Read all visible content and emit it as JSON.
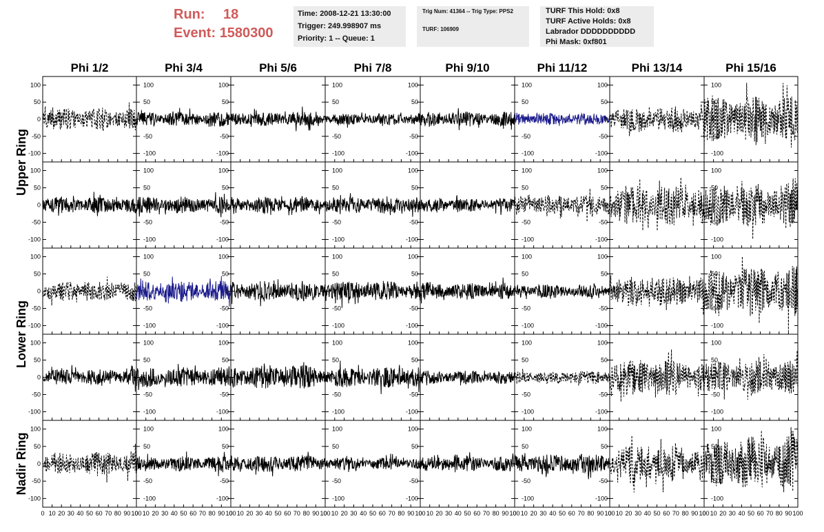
{
  "header": {
    "run_label": "Run:",
    "run_value": "18",
    "event_label": "Event:",
    "event_value": "1580300",
    "time": "Time: 2008-12-21 13:30:00",
    "trigger": "Trigger: 249.998907 ms",
    "priority": "Priority: 1 -- Queue: 1",
    "trig_num": "Trig Num: 41364 -- Trig Type: PPS2",
    "turf": "TURF: 106909",
    "turf_this_hold": "TURF This Hold: 0x8",
    "turf_active_holds": "TURF Active Holds: 0x8",
    "labrador": "Labrador DDDDDDDDDD",
    "phi_mask": "Phi Mask: 0xf801"
  },
  "colors": {
    "header_red": "#d05a5a",
    "trace_black": "#000000",
    "trace_blue": "#1a1a8c",
    "info_bg": "#ececec"
  },
  "chart_data": {
    "type": "line",
    "columns": [
      "Phi 1/2",
      "Phi 3/4",
      "Phi 5/6",
      "Phi 7/8",
      "Phi 9/10",
      "Phi 11/12",
      "Phi 13/14",
      "Phi 15/16"
    ],
    "rows": [
      "Upper Ring",
      "Lower Ring",
      "Nadir Ring"
    ],
    "xlim": [
      0,
      100
    ],
    "ylim": [
      -125,
      125
    ],
    "y_ticks": [
      -100,
      -50,
      0,
      50,
      100
    ],
    "x_ticks": [
      0,
      10,
      20,
      30,
      40,
      50,
      60,
      70,
      80,
      90,
      100
    ],
    "panels": [
      [
        {
          "amp": 35,
          "style": "dashed",
          "color": "black"
        },
        {
          "amp": 22,
          "style": "solid",
          "color": "black"
        },
        {
          "amp": 22,
          "style": "solid",
          "color": "black"
        },
        {
          "amp": 18,
          "style": "solid",
          "color": "black"
        },
        {
          "amp": 22,
          "style": "solid",
          "color": "black"
        },
        {
          "amp": 18,
          "style": "solid",
          "color": "blue"
        },
        {
          "amp": 40,
          "style": "dashed",
          "color": "black"
        },
        {
          "amp": 70,
          "style": "dashed",
          "color": "black"
        }
      ],
      [
        {
          "amp": 25,
          "style": "solid",
          "color": "black"
        },
        {
          "amp": 25,
          "style": "solid",
          "color": "black"
        },
        {
          "amp": 25,
          "style": "solid",
          "color": "black"
        },
        {
          "amp": 25,
          "style": "solid",
          "color": "black"
        },
        {
          "amp": 20,
          "style": "solid",
          "color": "black"
        },
        {
          "amp": 30,
          "style": "dashed",
          "color": "black"
        },
        {
          "amp": 60,
          "style": "dashed",
          "color": "black"
        },
        {
          "amp": 65,
          "style": "dashed",
          "color": "black"
        }
      ],
      [
        {
          "amp": 30,
          "style": "dashed",
          "color": "black"
        },
        {
          "amp": 30,
          "style": "solid",
          "color": "blue"
        },
        {
          "amp": 30,
          "style": "solid",
          "color": "black"
        },
        {
          "amp": 30,
          "style": "solid",
          "color": "black"
        },
        {
          "amp": 25,
          "style": "solid",
          "color": "black"
        },
        {
          "amp": 20,
          "style": "solid",
          "color": "black"
        },
        {
          "amp": 45,
          "style": "dashed",
          "color": "black"
        },
        {
          "amp": 75,
          "style": "dashed",
          "color": "black"
        }
      ],
      [
        {
          "amp": 25,
          "style": "solid",
          "color": "black"
        },
        {
          "amp": 30,
          "style": "solid",
          "color": "black"
        },
        {
          "amp": 35,
          "style": "solid",
          "color": "black"
        },
        {
          "amp": 30,
          "style": "solid",
          "color": "black"
        },
        {
          "amp": 20,
          "style": "solid",
          "color": "black"
        },
        {
          "amp": 20,
          "style": "dashed",
          "color": "black"
        },
        {
          "amp": 55,
          "style": "dashed",
          "color": "black"
        },
        {
          "amp": 50,
          "style": "dashed",
          "color": "black"
        }
      ],
      [
        {
          "amp": 35,
          "style": "dashed",
          "color": "black"
        },
        {
          "amp": 22,
          "style": "solid",
          "color": "black"
        },
        {
          "amp": 25,
          "style": "solid",
          "color": "black"
        },
        {
          "amp": 18,
          "style": "solid",
          "color": "black"
        },
        {
          "amp": 22,
          "style": "solid",
          "color": "black"
        },
        {
          "amp": 30,
          "style": "solid",
          "color": "black"
        },
        {
          "amp": 55,
          "style": "dashed",
          "color": "black"
        },
        {
          "amp": 80,
          "style": "dashed",
          "color": "black"
        }
      ]
    ]
  }
}
